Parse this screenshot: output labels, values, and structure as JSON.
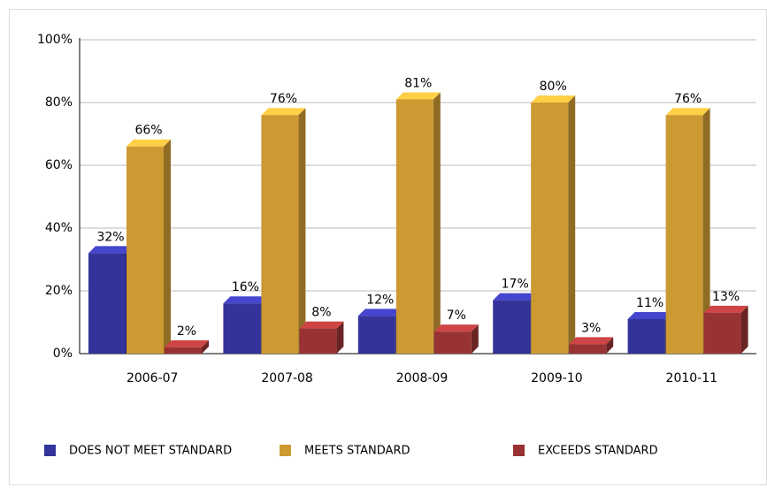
{
  "chart_data": {
    "type": "bar",
    "categories": [
      "2006-07",
      "2007-08",
      "2008-09",
      "2009-10",
      "2010-11"
    ],
    "series": [
      {
        "name": "DOES NOT MEET STANDARD",
        "color": "#333399",
        "values": [
          32,
          16,
          12,
          17,
          11
        ],
        "value_labels": [
          "32%",
          "16%",
          "12%",
          "17%",
          "11%"
        ]
      },
      {
        "name": "MEETS STANDARD",
        "color": "#cc9933",
        "values": [
          66,
          76,
          81,
          80,
          76
        ],
        "value_labels": [
          "66%",
          "76%",
          "81%",
          "80%",
          "76%"
        ]
      },
      {
        "name": "EXCEEDS STANDARD",
        "color": "#993333",
        "values": [
          2,
          8,
          7,
          3,
          13
        ],
        "value_labels": [
          "2%",
          "8%",
          "7%",
          "3%",
          "13%"
        ]
      }
    ],
    "ylim": [
      0,
      100
    ],
    "yticks": [
      {
        "value": 0,
        "label": "0%"
      },
      {
        "value": 20,
        "label": "20%"
      },
      {
        "value": 40,
        "label": "40%"
      },
      {
        "value": 60,
        "label": "60%"
      },
      {
        "value": 80,
        "label": "80%"
      },
      {
        "value": 100,
        "label": "100%"
      }
    ],
    "grid": true,
    "legend": "bottom"
  }
}
